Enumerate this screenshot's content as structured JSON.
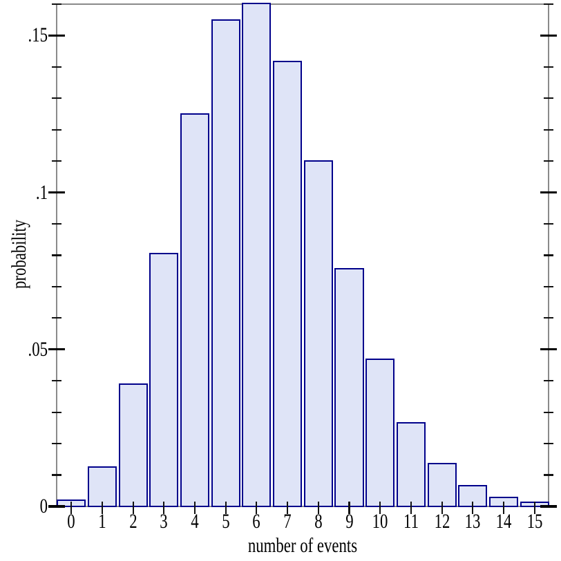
{
  "figure": {
    "background": "#ffffff",
    "text_color": "#000000"
  },
  "chart_data": {
    "type": "bar",
    "title": "",
    "xlabel": "number of events",
    "ylabel": "probability",
    "categories": [
      "0",
      "1",
      "2",
      "3",
      "4",
      "5",
      "6",
      "7",
      "8",
      "9",
      "10",
      "11",
      "12",
      "13",
      "14",
      "15"
    ],
    "values": [
      0.002,
      0.0126,
      0.039,
      0.0806,
      0.1249,
      0.1549,
      0.1601,
      0.1418,
      0.1099,
      0.0757,
      0.0469,
      0.0265,
      0.0137,
      0.0065,
      0.0029,
      0.0012
    ],
    "xlim": [
      -0.47,
      15.47
    ],
    "ylim": [
      0,
      0.16
    ],
    "y_major_ticks": [
      {
        "value": 0.0,
        "label": "0"
      },
      {
        "value": 0.05,
        "label": ".05"
      },
      {
        "value": 0.1,
        "label": ".1"
      },
      {
        "value": 0.15,
        "label": ".15"
      }
    ],
    "y_minor_step": 0.01,
    "grid": "off",
    "legend": "none",
    "colors": {
      "bar_fill": "#dfe4f7",
      "bar_border": "#00008b",
      "axis_frame": "#8a8a8a",
      "major_tick": "#000000",
      "minor_tick": "#111111"
    }
  }
}
